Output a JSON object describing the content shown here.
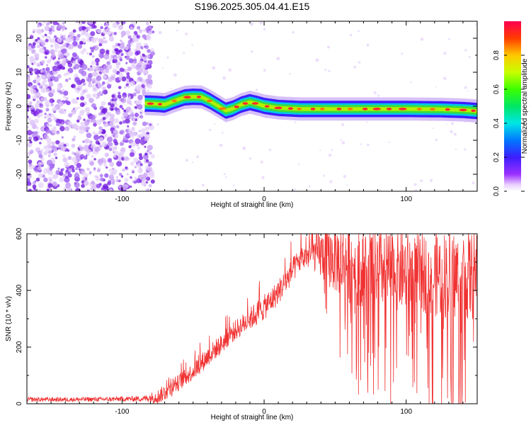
{
  "chart_data": [
    {
      "type": "heatmap",
      "title": "S196.2025.305.04.41.E15",
      "xlabel": "Height of straight line (km)",
      "ylabel": "Frequency (Hz)",
      "xlim": [
        -167,
        150
      ],
      "ylim": [
        -25,
        25
      ],
      "xticks": [
        -100,
        0,
        100
      ],
      "yticks": [
        -20,
        -10,
        0,
        10,
        20
      ],
      "xtick_labels": [
        "-100",
        "0",
        "100"
      ],
      "ytick_labels": [
        "-20",
        "-10",
        "0",
        "10",
        "20"
      ],
      "colorbar": {
        "label": "Normalized spectral amplitude",
        "range": [
          0,
          1
        ],
        "ticks": [
          0.0,
          0.2,
          0.4,
          0.6,
          0.8
        ],
        "tick_labels": [
          "0.0",
          "0.2",
          "0.4",
          "0.6",
          "0.8"
        ]
      },
      "ridge": {
        "x": [
          -83,
          -76,
          -70,
          -63,
          -56,
          -50,
          -44,
          -38,
          -32,
          -27,
          -22,
          -16,
          -10,
          -4,
          0,
          10,
          25,
          50,
          75,
          100,
          125,
          140,
          150
        ],
        "frequency": [
          0.8,
          0.7,
          0.5,
          1.6,
          2.6,
          2.8,
          2.7,
          1.5,
          0.0,
          -1.3,
          -0.7,
          0.5,
          1.2,
          0.6,
          0.1,
          -0.5,
          -0.8,
          -0.8,
          -0.8,
          -0.8,
          -0.9,
          -1.1,
          -1.4
        ],
        "noise_region_end": -80
      }
    },
    {
      "type": "line",
      "xlabel": "Height of straight line (km)",
      "ylabel": "SNR (10 * v/v)",
      "xlim": [
        -167,
        150
      ],
      "ylim": [
        0,
        600
      ],
      "xticks": [
        -100,
        0,
        100
      ],
      "yticks": [
        0,
        200,
        400,
        600
      ],
      "xtick_labels": [
        "-100",
        "0",
        "100"
      ],
      "ytick_labels": [
        "0",
        "200",
        "400",
        "600"
      ],
      "series": [
        {
          "name": "SNR",
          "color": "#f03232",
          "x": [
            -167,
            -140,
            -110,
            -85,
            -75,
            -70,
            -65,
            -60,
            -55,
            -50,
            -45,
            -40,
            -35,
            -30,
            -25,
            -20,
            -15,
            -10,
            -5,
            0,
            5,
            10,
            15,
            20,
            25,
            30,
            35,
            40,
            50,
            60,
            70,
            80,
            90,
            100,
            110,
            120,
            130,
            140,
            150
          ],
          "values": [
            15,
            15,
            16,
            18,
            25,
            40,
            55,
            75,
            95,
            115,
            140,
            165,
            190,
            210,
            240,
            260,
            280,
            300,
            320,
            340,
            365,
            395,
            430,
            470,
            505,
            520,
            530,
            525,
            510,
            495,
            480,
            475,
            470,
            465,
            460,
            458,
            455,
            452,
            450
          ],
          "noise_amplitude": [
            8,
            8,
            8,
            10,
            25,
            30,
            30,
            30,
            30,
            32,
            34,
            35,
            35,
            36,
            36,
            36,
            38,
            40,
            45,
            45,
            45,
            45,
            45,
            45,
            45,
            45,
            60,
            90,
            120,
            140,
            140,
            140,
            140,
            140,
            140,
            150,
            160,
            160,
            160
          ]
        }
      ]
    }
  ]
}
